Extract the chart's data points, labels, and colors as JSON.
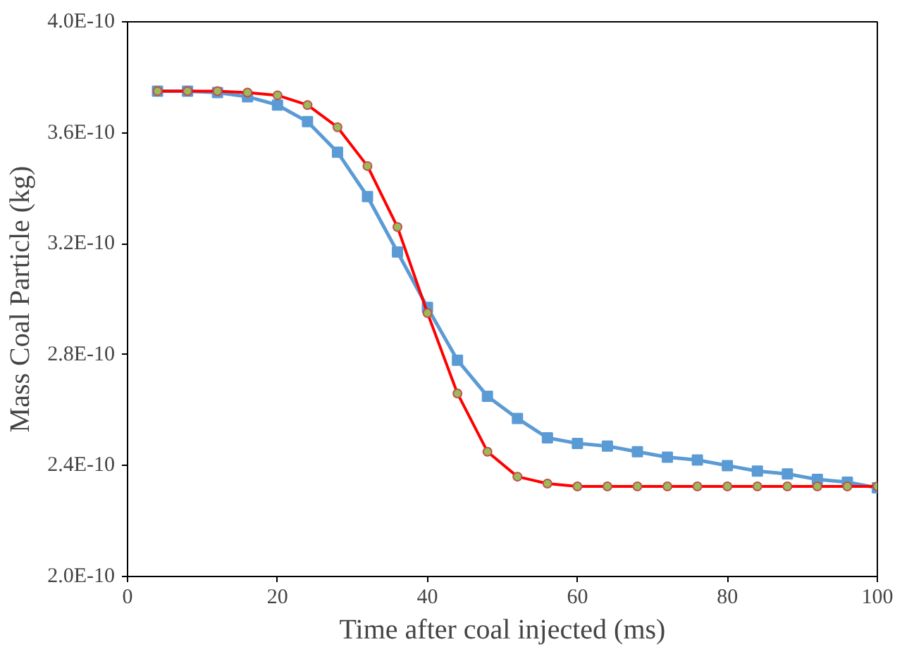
{
  "chart_data": {
    "type": "line",
    "xlabel": "Time after coal injected (ms)",
    "ylabel": "Mass Coal Particle (kg)",
    "x": [
      4,
      8,
      12,
      16,
      20,
      24,
      28,
      32,
      36,
      40,
      44,
      48,
      52,
      56,
      60,
      64,
      68,
      72,
      76,
      80,
      84,
      88,
      92,
      96,
      100
    ],
    "series": [
      {
        "color": "#5b9bd5",
        "marker": "square",
        "values": [
          3.75e-10,
          3.75e-10,
          3.745e-10,
          3.73e-10,
          3.7e-10,
          3.64e-10,
          3.53e-10,
          3.37e-10,
          3.17e-10,
          2.97e-10,
          2.78e-10,
          2.65e-10,
          2.57e-10,
          2.5e-10,
          2.48e-10,
          2.47e-10,
          2.45e-10,
          2.43e-10,
          2.42e-10,
          2.4e-10,
          2.38e-10,
          2.37e-10,
          2.35e-10,
          2.34e-10,
          2.32e-10
        ]
      },
      {
        "color": "#ff0000",
        "marker": "circle",
        "values": [
          3.75e-10,
          3.75e-10,
          3.75e-10,
          3.745e-10,
          3.735e-10,
          3.7e-10,
          3.62e-10,
          3.48e-10,
          3.26e-10,
          2.95e-10,
          2.66e-10,
          2.45e-10,
          2.36e-10,
          2.335e-10,
          2.325e-10,
          2.325e-10,
          2.325e-10,
          2.325e-10,
          2.325e-10,
          2.325e-10,
          2.325e-10,
          2.325e-10,
          2.325e-10,
          2.325e-10,
          2.325e-10
        ]
      }
    ],
    "xlim": [
      0,
      100
    ],
    "xticks": [
      0,
      20,
      40,
      60,
      80,
      100
    ],
    "ylim": [
      2e-10,
      4e-10
    ],
    "yticks": [
      {
        "value": 2e-10,
        "label": "2.0E-10"
      },
      {
        "value": 2.4e-10,
        "label": "2.4E-10"
      },
      {
        "value": 2.8e-10,
        "label": "2.8E-10"
      },
      {
        "value": 3.2e-10,
        "label": "3.2E-10"
      },
      {
        "value": 3.6e-10,
        "label": "3.6E-10"
      },
      {
        "value": 4e-10,
        "label": "4.0E-10"
      }
    ],
    "grid": false
  }
}
